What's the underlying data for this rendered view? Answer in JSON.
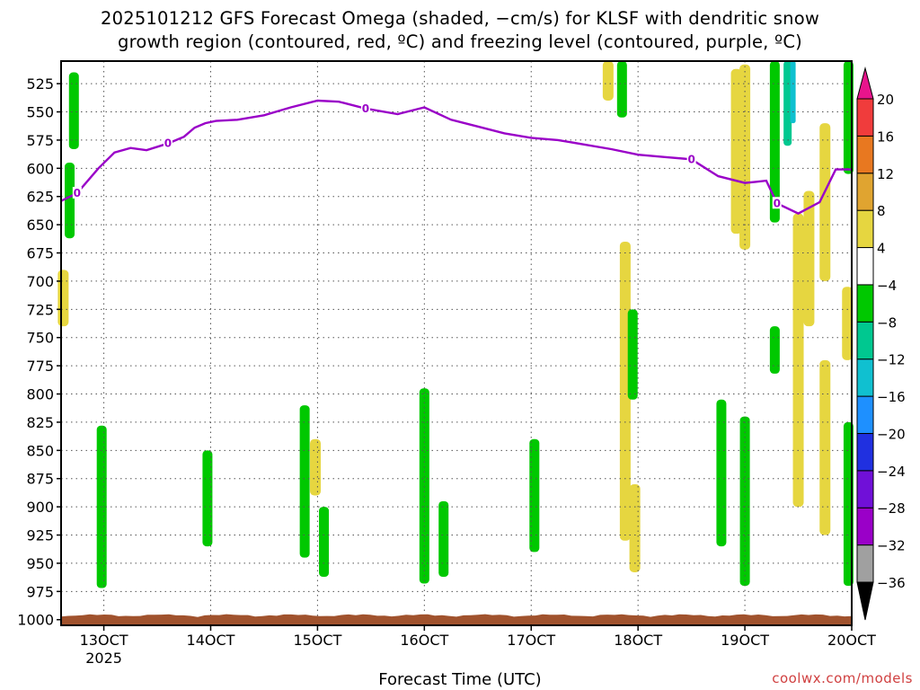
{
  "title_line1": "2025101212 GFS Forecast Omega (shaded, −cm/s) for KLSF with dendritic snow",
  "title_line2": "growth region (contoured, red, ºC) and freezing level (contoured, purple, ºC)",
  "credit": "coolwx.com/models",
  "chart_data": {
    "type": "heatmap",
    "title": "2025101212 GFS Forecast Omega (shaded, −cm/s) for KLSF with dendritic snow growth region (contoured, red, ºC) and freezing level (contoured, purple, ºC)",
    "xlabel": "Forecast Time (UTC)",
    "ylabel": "",
    "x_axis": {
      "ticks": [
        "13OCT",
        "14OCT",
        "15OCT",
        "16OCT",
        "17OCT",
        "18OCT",
        "19OCT",
        "20OCT"
      ],
      "year_label": "2025",
      "range_days": [
        12.6,
        20.0
      ]
    },
    "y_axis": {
      "ticks": [
        525,
        550,
        575,
        600,
        625,
        650,
        675,
        700,
        725,
        750,
        775,
        800,
        825,
        850,
        875,
        900,
        925,
        950,
        975,
        1000
      ],
      "range_hpa": [
        505,
        1005
      ],
      "reversed": true
    },
    "colorbar": {
      "levels": [
        -36,
        -32,
        -28,
        -24,
        -20,
        -16,
        -12,
        -8,
        -4,
        4,
        8,
        12,
        16,
        20
      ],
      "colors": [
        "#000000",
        "#a0a0a0",
        "#9a00c8",
        "#7010d8",
        "#2030e0",
        "#1e90ff",
        "#10c0d0",
        "#00c890",
        "#00c800",
        "#ffffff",
        "#e6d640",
        "#e0a430",
        "#e87820",
        "#f03c3c",
        "#e8148c"
      ]
    },
    "freezing_level": {
      "label": "0",
      "x": [
        12.6,
        12.75,
        12.95,
        13.1,
        13.25,
        13.4,
        13.6,
        13.75,
        13.85,
        13.95,
        14.05,
        14.25,
        14.5,
        14.75,
        15.0,
        15.2,
        15.45,
        15.75,
        16.0,
        16.25,
        16.5,
        16.75,
        17.0,
        17.25,
        17.5,
        17.75,
        18.0,
        18.25,
        18.5,
        18.75,
        19.0,
        19.1,
        19.2,
        19.3,
        19.5,
        19.7,
        19.85,
        20.0
      ],
      "y": [
        629,
        622,
        600,
        586,
        582,
        584,
        578,
        572,
        564,
        560,
        558,
        557,
        553,
        546,
        540,
        541,
        547,
        552,
        546,
        557,
        563,
        569,
        573,
        575,
        579,
        583,
        588,
        590,
        592,
        607,
        613,
        612,
        611,
        631,
        640,
        630,
        601,
        601
      ]
    },
    "omega_regions": [
      {
        "x": 12.62,
        "y1": 690,
        "y2": 740,
        "cat": "4to8"
      },
      {
        "x": 12.68,
        "y1": 595,
        "y2": 662,
        "cat": "-4to-8"
      },
      {
        "x": 12.72,
        "y1": 515,
        "y2": 583,
        "cat": "-4to-8"
      },
      {
        "x": 12.98,
        "y1": 828,
        "y2": 972,
        "cat": "-4to-8"
      },
      {
        "x": 13.97,
        "y1": 850,
        "y2": 935,
        "cat": "-4to-8"
      },
      {
        "x": 14.88,
        "y1": 810,
        "y2": 945,
        "cat": "-4to-8"
      },
      {
        "x": 14.98,
        "y1": 840,
        "y2": 890,
        "cat": "4to8"
      },
      {
        "x": 15.06,
        "y1": 900,
        "y2": 962,
        "cat": "-4to-8"
      },
      {
        "x": 16.0,
        "y1": 795,
        "y2": 968,
        "cat": "-4to-8"
      },
      {
        "x": 16.18,
        "y1": 895,
        "y2": 962,
        "cat": "-4to-8"
      },
      {
        "x": 17.03,
        "y1": 840,
        "y2": 940,
        "cat": "-4to-8"
      },
      {
        "x": 17.72,
        "y1": 505,
        "y2": 540,
        "cat": "4to8"
      },
      {
        "x": 17.85,
        "y1": 505,
        "y2": 555,
        "cat": "-4to-8"
      },
      {
        "x": 17.88,
        "y1": 665,
        "y2": 930,
        "cat": "4to8"
      },
      {
        "x": 17.97,
        "y1": 880,
        "y2": 958,
        "cat": "4to8"
      },
      {
        "x": 17.95,
        "y1": 725,
        "y2": 805,
        "cat": "-4to-8"
      },
      {
        "x": 18.78,
        "y1": 805,
        "y2": 935,
        "cat": "-4to-8"
      },
      {
        "x": 18.92,
        "y1": 512,
        "y2": 658,
        "cat": "4to8"
      },
      {
        "x": 19.0,
        "y1": 508,
        "y2": 672,
        "cat": "4to8"
      },
      {
        "x": 19.0,
        "y1": 820,
        "y2": 970,
        "cat": "-4to-8"
      },
      {
        "x": 19.28,
        "y1": 505,
        "y2": 648,
        "cat": "-4to-8"
      },
      {
        "x": 19.28,
        "y1": 740,
        "y2": 782,
        "cat": "-4to-8"
      },
      {
        "x": 19.4,
        "y1": 505,
        "y2": 580,
        "cat": "-8to-12"
      },
      {
        "x": 19.45,
        "y1": 505,
        "y2": 560,
        "cat": "-12to-16"
      },
      {
        "x": 19.5,
        "y1": 640,
        "y2": 900,
        "cat": "4to8"
      },
      {
        "x": 19.6,
        "y1": 620,
        "y2": 740,
        "cat": "4to8"
      },
      {
        "x": 19.75,
        "y1": 560,
        "y2": 700,
        "cat": "4to8"
      },
      {
        "x": 19.75,
        "y1": 770,
        "y2": 925,
        "cat": "4to8"
      },
      {
        "x": 19.97,
        "y1": 505,
        "y2": 605,
        "cat": "-4to-8"
      },
      {
        "x": 19.96,
        "y1": 705,
        "y2": 770,
        "cat": "4to8"
      },
      {
        "x": 19.97,
        "y1": 825,
        "y2": 970,
        "cat": "-4to-8"
      }
    ]
  }
}
